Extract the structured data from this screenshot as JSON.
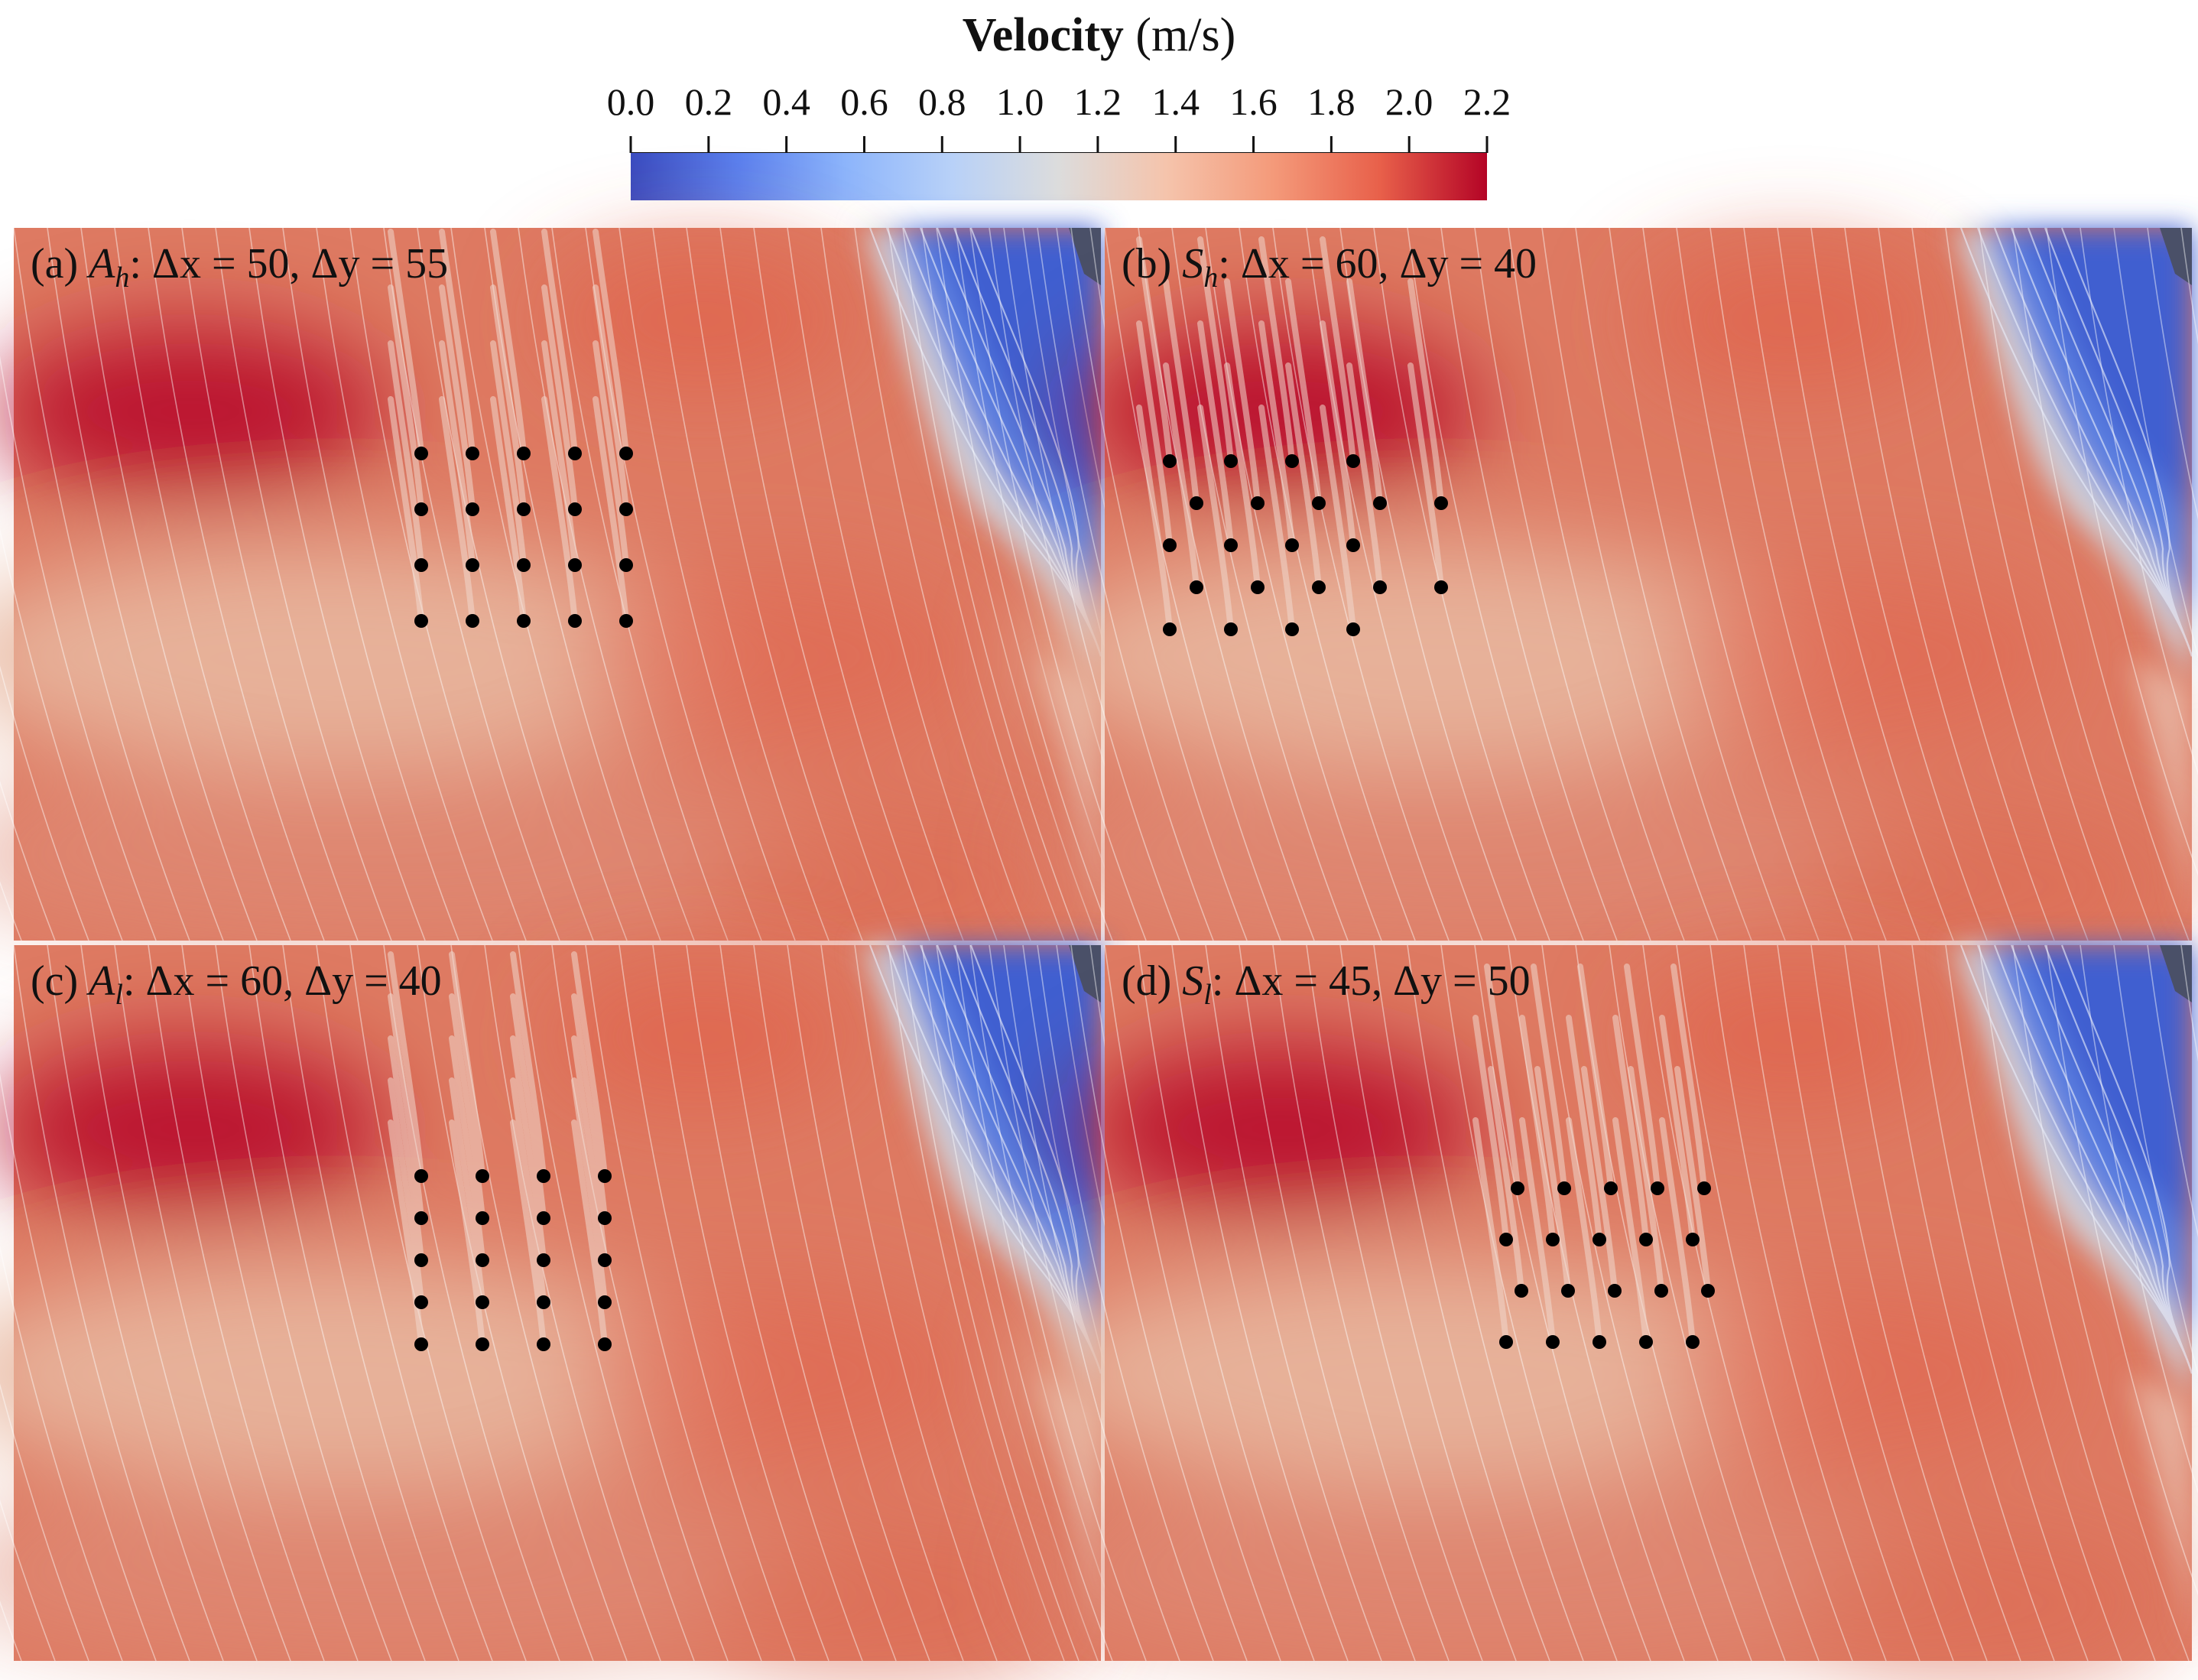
{
  "colorbar": {
    "title_bold": "Velocity",
    "title_unit": "(m/s)",
    "ticks": [
      "0.0",
      "0.2",
      "0.4",
      "0.6",
      "0.8",
      "1.0",
      "1.2",
      "1.4",
      "1.6",
      "1.8",
      "2.0",
      "2.2"
    ],
    "min": 0.0,
    "max": 2.2,
    "colors": [
      "#3a4cc0",
      "#5a80ee",
      "#8cb4fb",
      "#b8d1f8",
      "#dcdcdc",
      "#f5c4ac",
      "#f49a7a",
      "#e8604a",
      "#b40426"
    ]
  },
  "panels": [
    {
      "id": "a",
      "label_prefix": "(a) ",
      "symbol": "A",
      "subscript": "h",
      "label_rest": ": Δx = 50, Δy = 55",
      "layout": "aligned",
      "columns": 5,
      "rows": 4
    },
    {
      "id": "b",
      "label_prefix": "(b) ",
      "symbol": "S",
      "subscript": "h",
      "label_rest": ": Δx = 60, Δy = 40",
      "layout": "staggered",
      "columns": 4,
      "rows": 5
    },
    {
      "id": "c",
      "label_prefix": "(c) ",
      "symbol": "A",
      "subscript": "l",
      "label_rest": ": Δx = 60, Δy = 40",
      "layout": "aligned",
      "columns": 4,
      "rows": 5
    },
    {
      "id": "d",
      "label_prefix": "(d) ",
      "symbol": "S",
      "subscript": "l",
      "label_rest": ": Δx = 45, Δy = 50",
      "layout": "staggered",
      "columns": 5,
      "rows": 4
    }
  ]
}
